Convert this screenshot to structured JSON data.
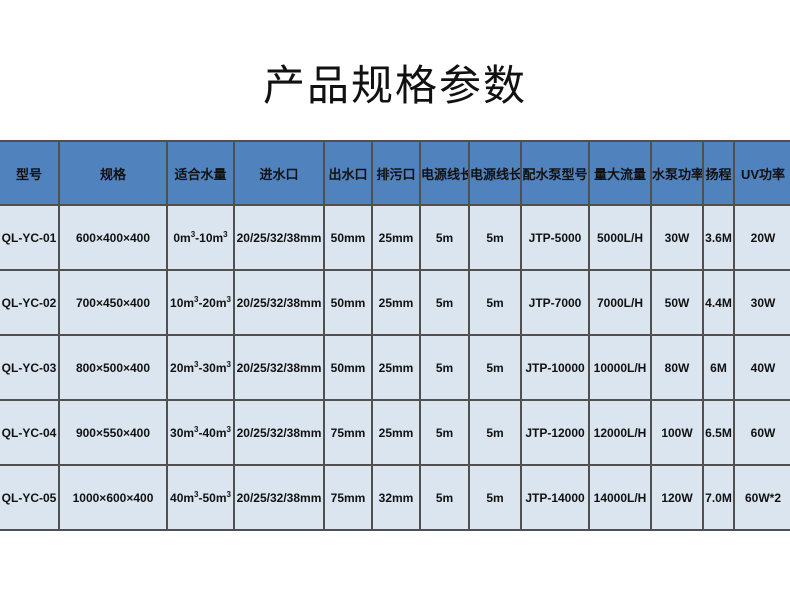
{
  "title": "产品规格参数",
  "headers": [
    "型号",
    "规格",
    "适合水量",
    "进水口",
    "出水口",
    "排污口",
    "电源线长",
    "电源线长",
    "配水泵型号",
    "量大流量",
    "水泵功率",
    "扬程",
    "UV功率"
  ],
  "rows": [
    {
      "model": "QL-YC-01",
      "size": "600×400×400",
      "vol_from": "0m",
      "vol_to": "-10m",
      "exp": "3",
      "inlet": "20/25/32/38mm",
      "outlet": "50mm",
      "drain": "25mm",
      "cable1": "5m",
      "cable2": "5m",
      "pump": "JTP-5000",
      "flow": "5000L/H",
      "power": "30W",
      "head": "3.6M",
      "uv": "20W"
    },
    {
      "model": "QL-YC-02",
      "size": "700×450×400",
      "vol_from": "10m",
      "vol_to": "-20m",
      "exp": "3",
      "inlet": "20/25/32/38mm",
      "outlet": "50mm",
      "drain": "25mm",
      "cable1": "5m",
      "cable2": "5m",
      "pump": "JTP-7000",
      "flow": "7000L/H",
      "power": "50W",
      "head": "4.4M",
      "uv": "30W"
    },
    {
      "model": "QL-YC-03",
      "size": "800×500×400",
      "vol_from": "20m",
      "vol_to": "-30m",
      "exp": "3",
      "inlet": "20/25/32/38mm",
      "outlet": "50mm",
      "drain": "25mm",
      "cable1": "5m",
      "cable2": "5m",
      "pump": "JTP-10000",
      "flow": "10000L/H",
      "power": "80W",
      "head": "6M",
      "uv": "40W"
    },
    {
      "model": "QL-YC-04",
      "size": "900×550×400",
      "vol_from": "30m",
      "vol_to": "-40m",
      "exp": "3",
      "inlet": "20/25/32/38mm",
      "outlet": "75mm",
      "drain": "25mm",
      "cable1": "5m",
      "cable2": "5m",
      "pump": "JTP-12000",
      "flow": "12000L/H",
      "power": "100W",
      "head": "6.5M",
      "uv": "60W"
    },
    {
      "model": "QL-YC-05",
      "size": "1000×600×400",
      "vol_from": "40m",
      "vol_to": "-50m",
      "exp": "3",
      "inlet": "20/25/32/38mm",
      "outlet": "75mm",
      "drain": "32mm",
      "cable1": "5m",
      "cable2": "5m",
      "pump": "JTP-14000",
      "flow": "14000L/H",
      "power": "120W",
      "head": "7.0M",
      "uv": "60W*2"
    }
  ]
}
